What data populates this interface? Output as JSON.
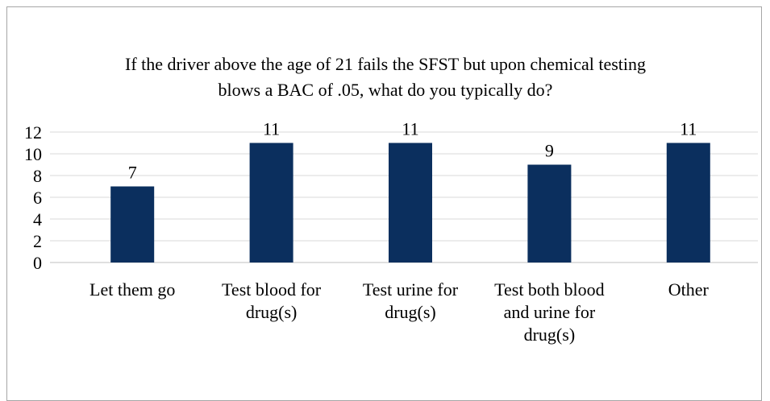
{
  "chart_data": {
    "type": "bar",
    "title": "If the driver above the age of 21 fails the SFST but upon chemical testing blows a BAC of .05, what do you typically do?",
    "categories": [
      "Let them go",
      "Test blood for drug(s)",
      "Test urine for drug(s)",
      "Test both blood and urine for drug(s)",
      "Other"
    ],
    "values": [
      7,
      11,
      11,
      9,
      11
    ],
    "color": "#0b2f5e",
    "ylim": [
      0,
      12
    ],
    "yticks": [
      0,
      2,
      4,
      6,
      8,
      10,
      12
    ],
    "grid": true
  }
}
